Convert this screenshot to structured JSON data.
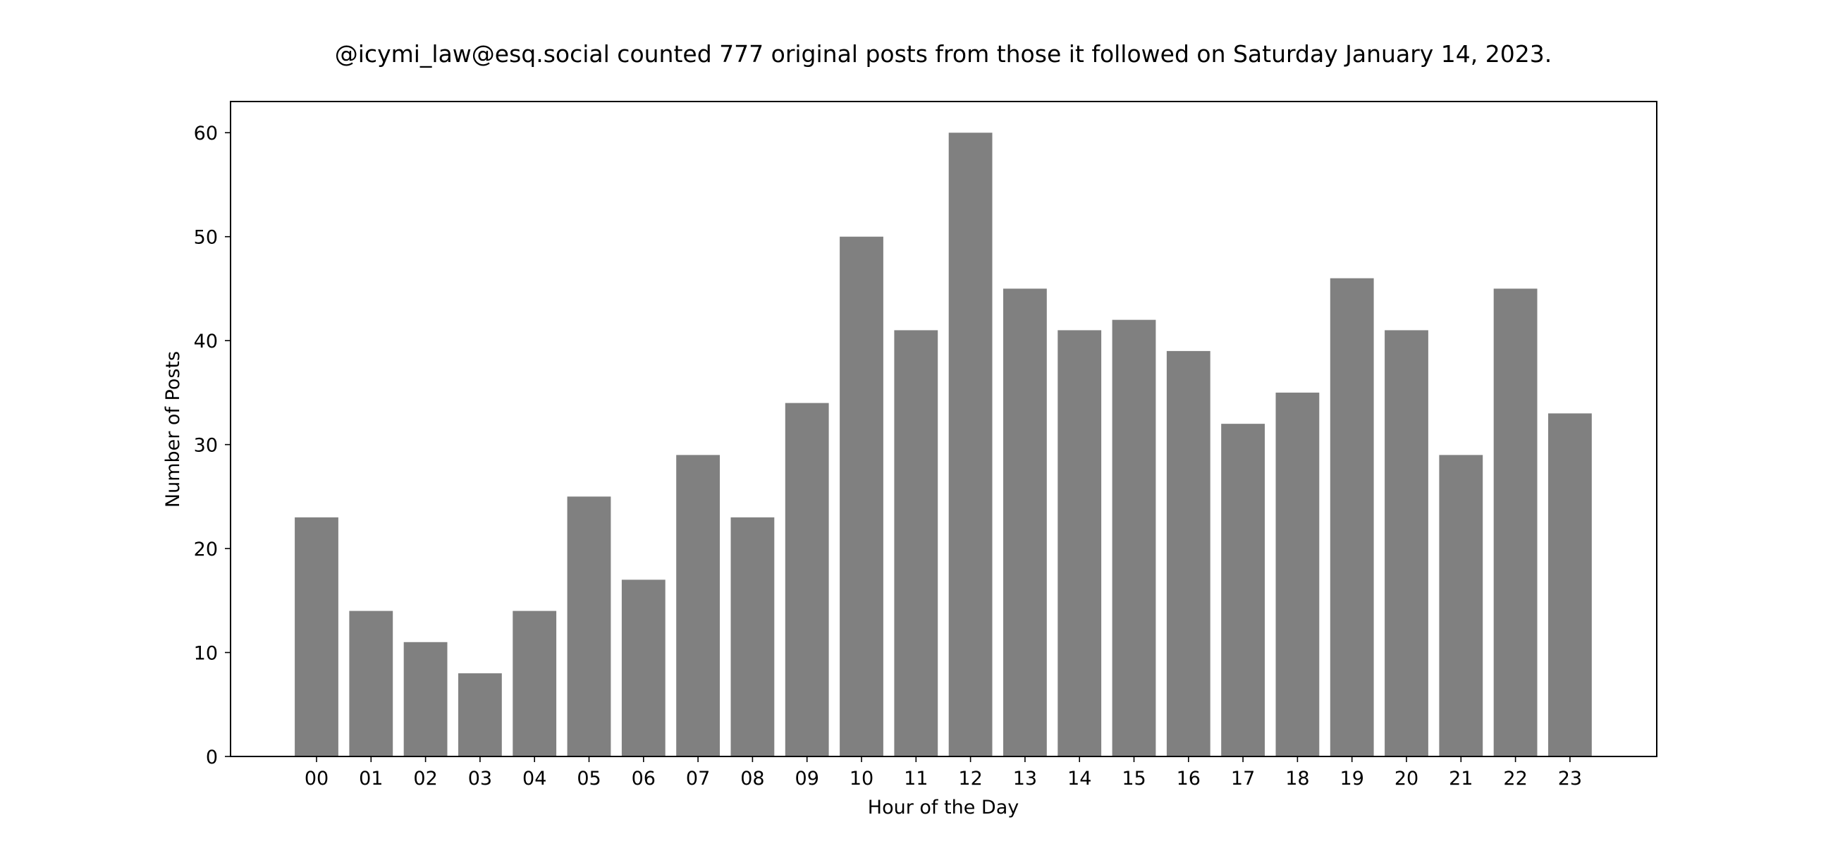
{
  "chart_data": {
    "type": "bar",
    "title": "@icymi_law@esq.social counted 777 original posts from those it followed on Saturday January 14, 2023.",
    "xlabel": "Hour of the Day",
    "ylabel": "Number of Posts",
    "categories": [
      "00",
      "01",
      "02",
      "03",
      "04",
      "05",
      "06",
      "07",
      "08",
      "09",
      "10",
      "11",
      "12",
      "13",
      "14",
      "15",
      "16",
      "17",
      "18",
      "19",
      "20",
      "21",
      "22",
      "23"
    ],
    "values": [
      23,
      14,
      11,
      8,
      14,
      25,
      17,
      29,
      23,
      34,
      50,
      41,
      60,
      45,
      41,
      42,
      39,
      32,
      35,
      46,
      41,
      29,
      45,
      33
    ],
    "ylim": [
      0,
      63
    ],
    "yticks": [
      0,
      10,
      20,
      30,
      40,
      50,
      60
    ],
    "grid": false,
    "legend": "none",
    "bar_color": "#808080",
    "axis_color": "#000000"
  }
}
